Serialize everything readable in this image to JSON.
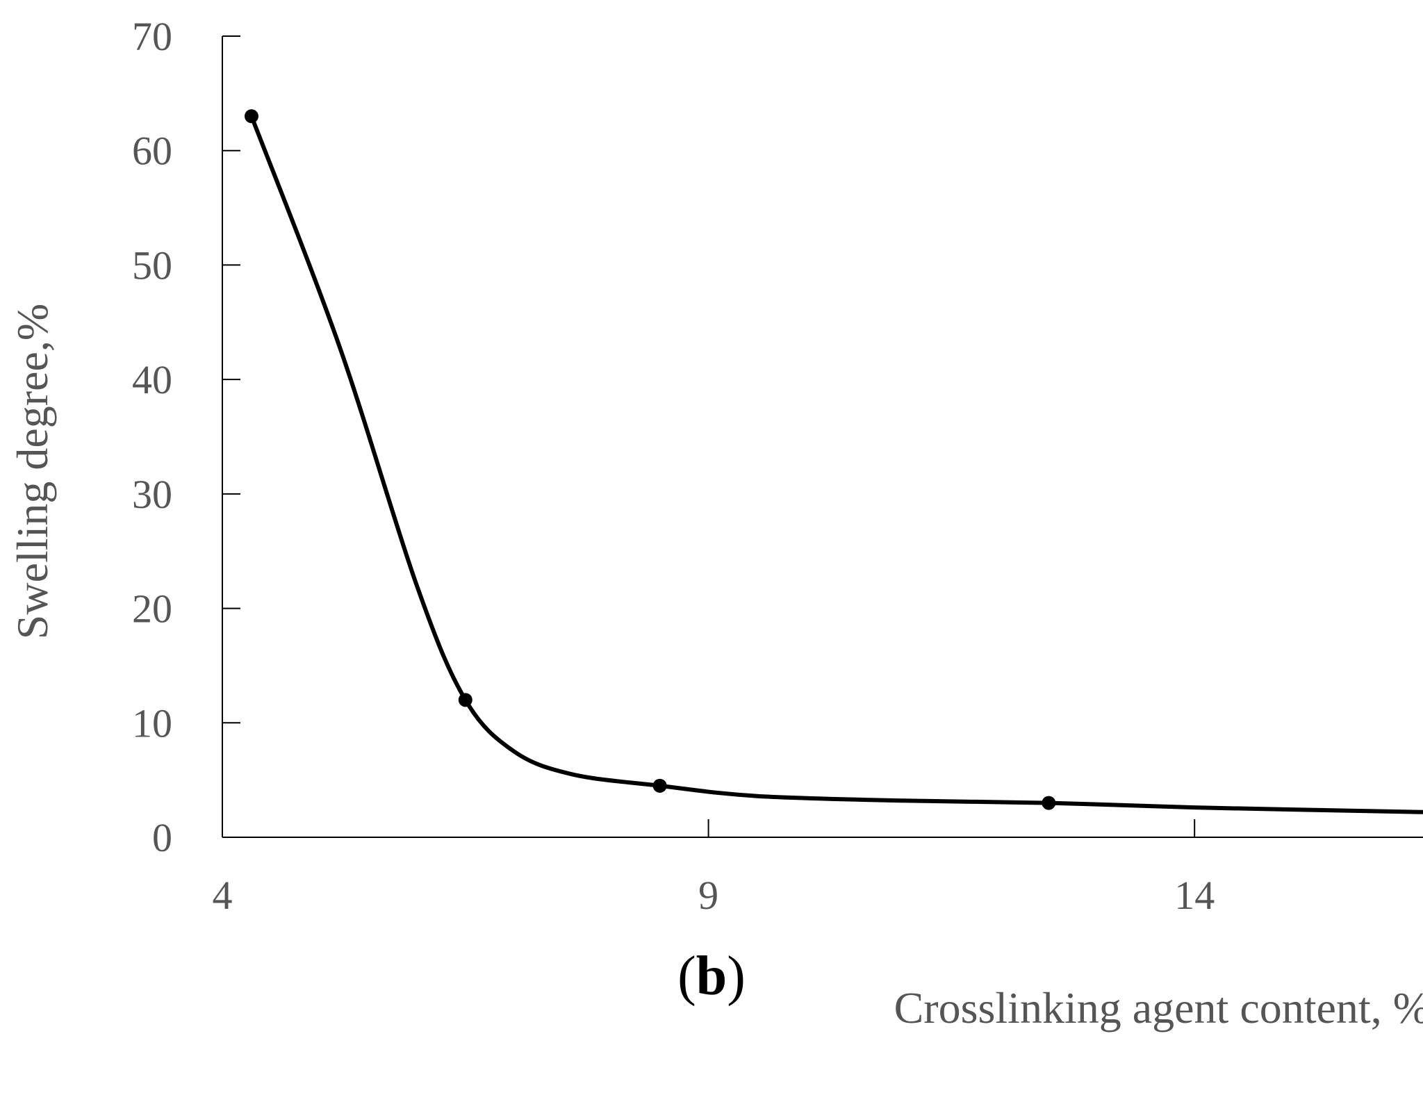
{
  "chart_data": {
    "type": "line",
    "xlabel": "Crosslinking agent content, %",
    "ylabel": "Swelling degree,%",
    "xlim": [
      4,
      16.35
    ],
    "ylim": [
      0,
      70
    ],
    "xticks": [
      4,
      9,
      14
    ],
    "xtick_labels": [
      "4",
      "9",
      "14"
    ],
    "yticks": [
      0,
      10,
      20,
      30,
      40,
      50,
      60,
      70
    ],
    "ytick_labels": [
      "0",
      "10",
      "20",
      "30",
      "40",
      "50",
      "60",
      "70"
    ],
    "series": [
      {
        "x": [
          4.3,
          6.5,
          8.5,
          12.5
        ],
        "y": [
          63,
          12,
          4.5,
          3
        ]
      }
    ],
    "trend_curve": {
      "x": [
        4.3,
        5.2,
        6.0,
        6.5,
        7.0,
        7.6,
        8.5,
        9.5,
        11,
        12.5,
        14,
        16.35
      ],
      "y": [
        63,
        43,
        22,
        12,
        7.5,
        5.5,
        4.5,
        3.6,
        3.2,
        3.0,
        2.6,
        2.2
      ]
    },
    "grid": false,
    "legend": "none"
  },
  "panel": {
    "open": "(",
    "letter": "b",
    "close": ")"
  }
}
